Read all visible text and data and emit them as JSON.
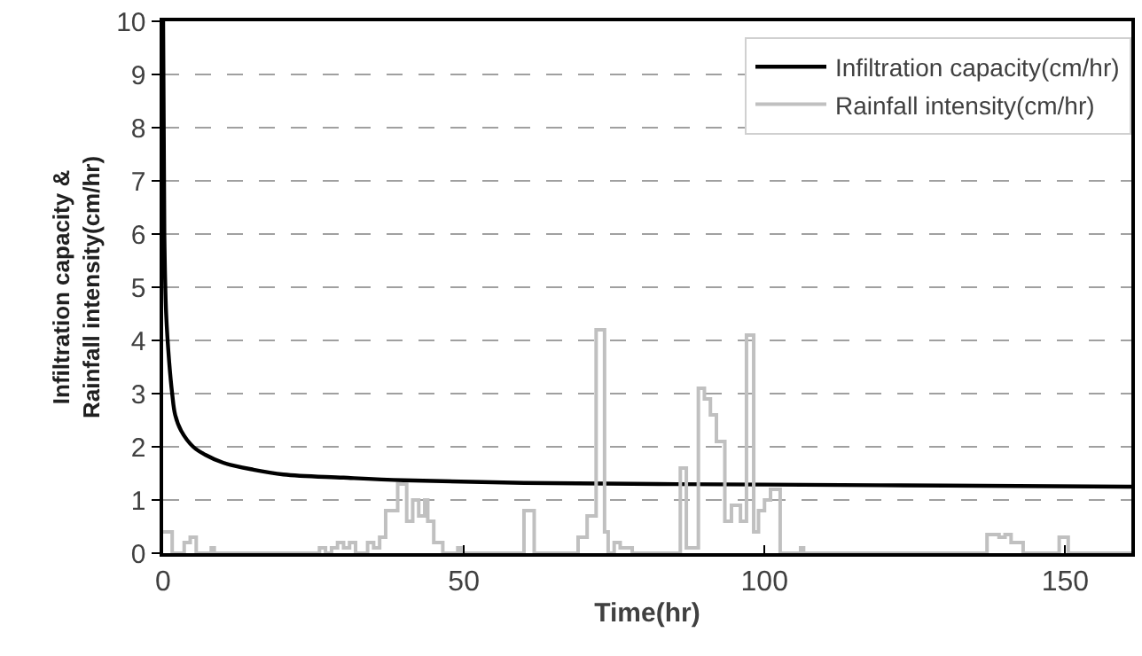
{
  "chart_data": {
    "type": "line",
    "xlabel": "Time(hr)",
    "ylabel": "Infiltration capacity &\nRainfall intensity(cm/hr)",
    "xlim": [
      0,
      161
    ],
    "xticks": [
      0,
      50,
      100,
      150
    ],
    "ylim": [
      0,
      10
    ],
    "yticks": [
      0,
      1,
      2,
      3,
      4,
      5,
      6,
      7,
      8,
      9,
      10
    ],
    "grid": "y",
    "legend": "top right",
    "series": [
      {
        "name": "Infiltration capacity(cm/hr)",
        "color": "#000000",
        "x": [
          0,
          0.2,
          0.5,
          1,
          1.5,
          2,
          3,
          5,
          7,
          10,
          15,
          20,
          30,
          40,
          60,
          100,
          130,
          161
        ],
        "values": [
          10,
          6,
          4.5,
          3.6,
          3.0,
          2.6,
          2.3,
          2.0,
          1.85,
          1.7,
          1.57,
          1.48,
          1.42,
          1.37,
          1.32,
          1.29,
          1.27,
          1.25
        ]
      },
      {
        "name": "Rainfall intensity(cm/hr)",
        "type": "step",
        "color": "#c0c0c0",
        "x": [
          0,
          1.5,
          3.5,
          4.5,
          5.5,
          8,
          8.5,
          26,
          27,
          28,
          29,
          30,
          31,
          32,
          34,
          35,
          36,
          37,
          39,
          40.5,
          41.5,
          42.5,
          43.5,
          44,
          45,
          46.5,
          49,
          49.5,
          60,
          61.7,
          69,
          70.5,
          72,
          73.4,
          74,
          75,
          76,
          78,
          86,
          87,
          89,
          90,
          91,
          92,
          93.4,
          94.5,
          96,
          97,
          98.2,
          99,
          100,
          101,
          102.6,
          106,
          106.5,
          137,
          139,
          140,
          141,
          143,
          149,
          150.5,
          161
        ],
        "values": [
          0.4,
          0,
          0.2,
          0.3,
          0,
          0.1,
          0,
          0.1,
          0,
          0.1,
          0.2,
          0.1,
          0.2,
          0,
          0.2,
          0.1,
          0.3,
          0.8,
          1.3,
          0.6,
          1.0,
          0.7,
          1.0,
          0.6,
          0.2,
          0,
          0.1,
          0,
          0.8,
          0,
          0.3,
          0.7,
          4.2,
          0.4,
          0,
          0.2,
          0.1,
          0,
          1.6,
          0.1,
          3.1,
          2.9,
          2.6,
          2.1,
          0.6,
          0.9,
          0.6,
          4.1,
          0.4,
          0.8,
          1.0,
          1.2,
          0,
          0.1,
          0,
          0.35,
          0.3,
          0.35,
          0.2,
          0,
          0.3,
          0,
          0
        ]
      }
    ]
  }
}
